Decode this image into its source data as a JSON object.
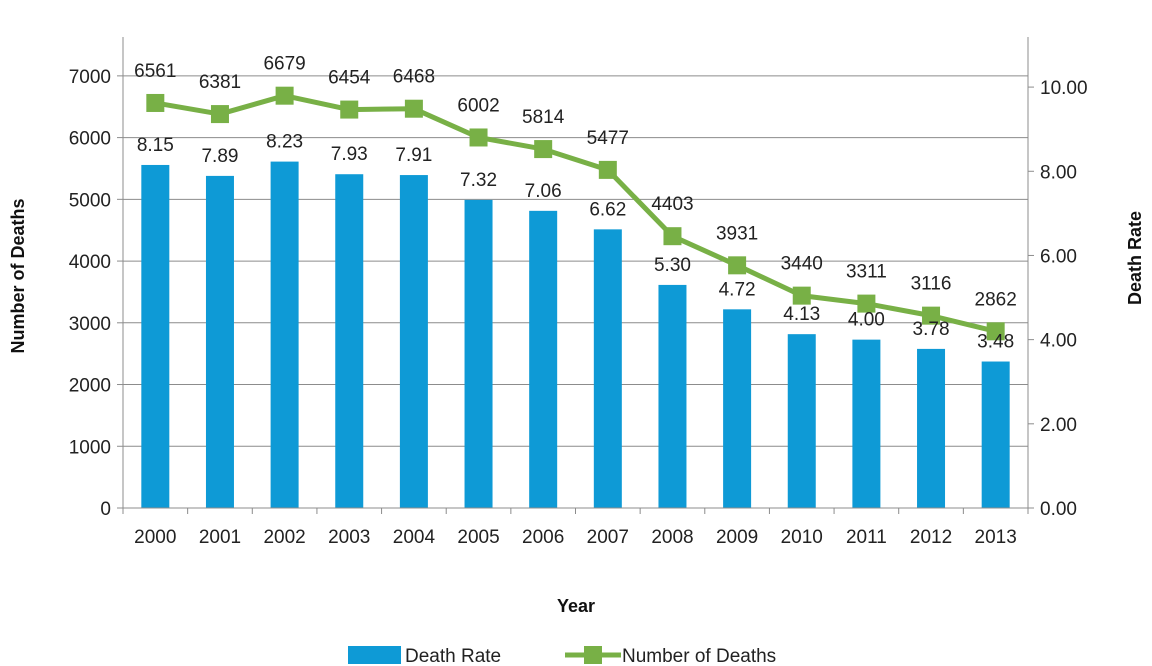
{
  "chart_data": {
    "type": "bar+line",
    "categories": [
      "2000",
      "2001",
      "2002",
      "2003",
      "2004",
      "2005",
      "2006",
      "2007",
      "2008",
      "2009",
      "2010",
      "2011",
      "2012",
      "2013"
    ],
    "series": [
      {
        "name": "Death Rate",
        "type": "bar",
        "axis": "right",
        "color": "#0e9ad6",
        "values": [
          8.15,
          7.89,
          8.23,
          7.93,
          7.91,
          7.32,
          7.06,
          6.62,
          5.3,
          4.72,
          4.13,
          4.0,
          3.78,
          3.48
        ],
        "labels": [
          "8.15",
          "7.89",
          "8.23",
          "7.93",
          "7.91",
          "7.32",
          "7.06",
          "6.62",
          "5.30",
          "4.72",
          "4.13",
          "4.00",
          "3.78",
          "3.48"
        ]
      },
      {
        "name": "Number of Deaths",
        "type": "line",
        "axis": "left",
        "color": "#78b046",
        "marker": "square",
        "values": [
          6561,
          6381,
          6679,
          6454,
          6468,
          6002,
          5814,
          5477,
          4403,
          3931,
          3440,
          3311,
          3116,
          2862
        ],
        "labels": [
          "6561",
          "6381",
          "6679",
          "6454",
          "6468",
          "6002",
          "5814",
          "5477",
          "4403",
          "3931",
          "3440",
          "3311",
          "3116",
          "2862"
        ]
      }
    ],
    "xlabel": "Year",
    "ylabel_left": "Number of Deaths",
    "ylabel_right": "Death Rate",
    "ylim_left": [
      0,
      7500
    ],
    "yticks_left": [
      "0",
      "1000",
      "2000",
      "3000",
      "4000",
      "5000",
      "6000",
      "7000"
    ],
    "ylim_right": [
      0,
      11.0
    ],
    "yticks_right": [
      "0.00",
      "2.00",
      "4.00",
      "6.00",
      "8.00",
      "10.00"
    ],
    "grid": true,
    "legend_position": "bottom"
  }
}
